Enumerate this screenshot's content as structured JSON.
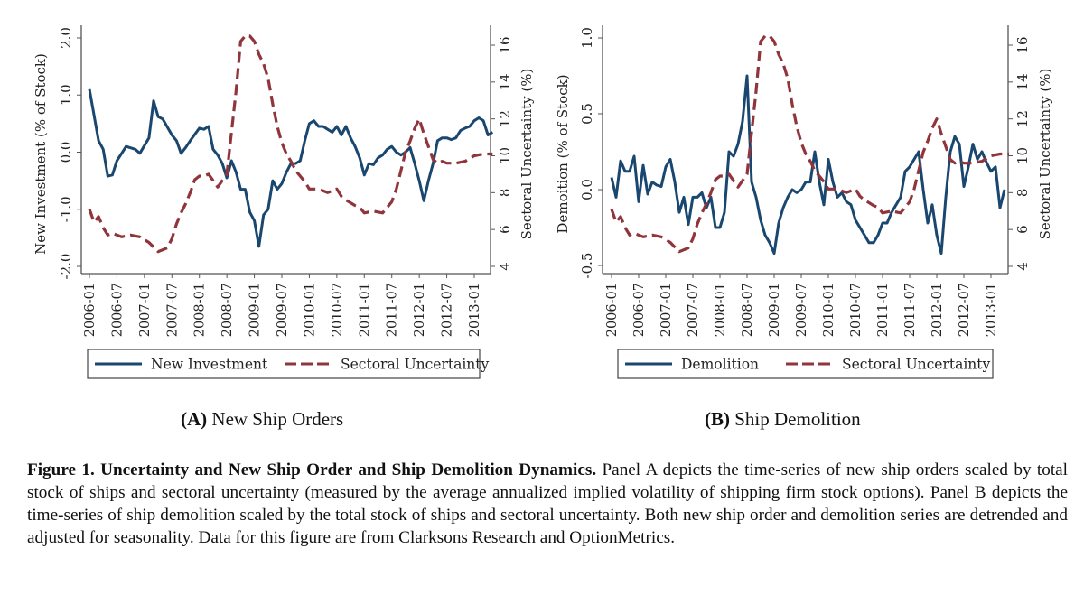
{
  "figure": {
    "panel_labels": [
      {
        "letter": "(A)",
        "text": "New Ship Orders"
      },
      {
        "letter": "(B)",
        "text": "Ship Demolition"
      }
    ],
    "caption": {
      "title": "Figure 1.  Uncertainty and New Ship Order and Ship Demolition Dynamics.",
      "body": "Panel A depicts the time-series of new ship orders scaled by total stock of ships and sectoral uncertainty (measured by the average annualized implied volatility of shipping firm stock options). Panel B depicts the time-series of ship demolition scaled by the total stock of ships and sectoral uncertainty.  Both new ship order and demolition series are detrended and adjusted for seasonality. Data for this figure are from Clarksons Research and OptionMetrics."
    }
  },
  "chart_data": [
    {
      "type": "line",
      "panel": "A",
      "title": "New Ship Orders",
      "xlabel": "",
      "ylabel": "New Investment (% of Stock)",
      "y2label": "Sectoral Uncertainty (%)",
      "x_ticks": [
        "2006-01",
        "2006-07",
        "2007-01",
        "2007-07",
        "2008-01",
        "2008-07",
        "2009-01",
        "2009-07",
        "2010-01",
        "2010-07",
        "2011-01",
        "2011-07",
        "2012-01",
        "2012-07",
        "2013-01"
      ],
      "y_ticks": [
        "-2.0",
        "-1.0",
        "0.0",
        "1.0",
        "2.0"
      ],
      "y2_ticks": [
        "4",
        "6",
        "8",
        "10",
        "12",
        "14",
        "16"
      ],
      "ylim": [
        -2.0,
        2.0
      ],
      "y2lim": [
        4,
        16.5
      ],
      "x_range_months": [
        0,
        88
      ],
      "grid": false,
      "legend_position": "bottom",
      "colors": {
        "primary": "#1a476f",
        "secondary": "#90353b"
      },
      "series": [
        {
          "name": "New Investment",
          "axis": "left",
          "style": "solid",
          "x_months": [
            0,
            2,
            3,
            4,
            5,
            6,
            8,
            10,
            11,
            13,
            14,
            15,
            16,
            18,
            19,
            20,
            21,
            22,
            24,
            25,
            26,
            27,
            28,
            29,
            30,
            31,
            32,
            33,
            34,
            35,
            36,
            37,
            38,
            39,
            40,
            41,
            42,
            43,
            44,
            45,
            46,
            47,
            48,
            49,
            50,
            51,
            52,
            53,
            54,
            55,
            56,
            57,
            58,
            59,
            60,
            61,
            62,
            63,
            64,
            65,
            66,
            67,
            68,
            69,
            70,
            71,
            72,
            73,
            74,
            75,
            76,
            77,
            78,
            79,
            80,
            81,
            82,
            83,
            84,
            85,
            86,
            87,
            88
          ],
          "values": [
            1.1,
            0.2,
            0.05,
            -0.42,
            -0.4,
            -0.15,
            0.1,
            0.05,
            -0.02,
            0.25,
            0.9,
            0.62,
            0.58,
            0.3,
            0.2,
            -0.02,
            0.08,
            0.2,
            0.42,
            0.4,
            0.45,
            0.05,
            -0.05,
            -0.2,
            -0.45,
            -0.15,
            -0.35,
            -0.65,
            -0.65,
            -1.05,
            -1.2,
            -1.65,
            -1.1,
            -1.0,
            -0.5,
            -0.65,
            -0.55,
            -0.35,
            -0.2,
            -0.2,
            -0.15,
            0.2,
            0.5,
            0.55,
            0.45,
            0.45,
            0.4,
            0.35,
            0.45,
            0.3,
            0.45,
            0.25,
            0.1,
            -0.1,
            -0.4,
            -0.2,
            -0.22,
            -0.1,
            -0.05,
            0.05,
            0.1,
            0.0,
            -0.05,
            0.0,
            0.08,
            -0.2,
            -0.5,
            -0.85,
            -0.5,
            -0.2,
            0.2,
            0.25,
            0.25,
            0.22,
            0.25,
            0.38,
            0.42,
            0.45,
            0.55,
            0.6,
            0.55,
            0.3,
            0.35
          ]
        },
        {
          "name": "Sectoral Uncertainty",
          "axis": "right",
          "style": "dashed",
          "x_months": [
            0,
            1,
            2,
            3,
            4,
            5,
            7,
            9,
            11,
            13,
            15,
            17,
            18,
            19,
            20,
            21,
            22,
            23,
            24,
            25,
            26,
            28,
            30,
            32,
            33,
            34,
            35,
            36,
            37,
            38,
            39,
            40,
            41,
            42,
            43,
            44,
            45,
            46,
            47,
            48,
            50,
            52,
            54,
            55,
            56,
            58,
            59,
            60,
            62,
            64,
            66,
            67,
            68,
            69,
            70,
            71,
            72,
            73,
            74,
            75,
            76,
            77,
            78,
            79,
            80,
            82,
            84,
            86,
            88
          ],
          "values": [
            7.1,
            6.4,
            6.7,
            6.1,
            5.7,
            5.8,
            5.6,
            5.7,
            5.6,
            5.3,
            4.8,
            5.0,
            5.5,
            6.3,
            6.9,
            7.4,
            8.0,
            8.7,
            8.9,
            8.9,
            9.0,
            8.3,
            9.0,
            13.5,
            16.2,
            16.5,
            16.5,
            16.2,
            15.5,
            15.0,
            14.2,
            12.8,
            11.6,
            10.7,
            10.1,
            9.7,
            9.2,
            8.9,
            8.6,
            8.2,
            8.2,
            8.0,
            8.2,
            7.8,
            7.6,
            7.3,
            7.2,
            6.9,
            7.0,
            6.9,
            7.5,
            8.2,
            9.2,
            10.2,
            10.8,
            11.5,
            12.0,
            11.2,
            10.5,
            9.8,
            9.6,
            9.7,
            9.6,
            9.6,
            9.6,
            9.7,
            10.0,
            10.1,
            10.1
          ]
        }
      ]
    },
    {
      "type": "line",
      "panel": "B",
      "title": "Ship Demolition",
      "xlabel": "",
      "ylabel": "Demoition (% of Stock)",
      "y2label": "Sectoral Uncertainty (%)",
      "x_ticks": [
        "2006-01",
        "2006-07",
        "2007-01",
        "2007-07",
        "2008-01",
        "2008-07",
        "2009-01",
        "2009-07",
        "2010-01",
        "2010-07",
        "2011-01",
        "2011-07",
        "2012-01",
        "2012-07",
        "2013-01"
      ],
      "y_ticks": [
        "-0.5",
        "0.0",
        "0.5",
        "1.0"
      ],
      "y2_ticks": [
        "4",
        "6",
        "8",
        "10",
        "12",
        "14",
        "16"
      ],
      "ylim": [
        -0.52,
        1.0
      ],
      "y2lim": [
        4,
        16.5
      ],
      "x_range_months": [
        0,
        88
      ],
      "grid": false,
      "legend_position": "bottom",
      "colors": {
        "primary": "#1a476f",
        "secondary": "#90353b"
      },
      "series": [
        {
          "name": "Demolition",
          "axis": "left",
          "style": "solid",
          "x_months": [
            0,
            1,
            2,
            3,
            4,
            5,
            6,
            7,
            8,
            9,
            10,
            11,
            12,
            13,
            14,
            15,
            16,
            17,
            18,
            19,
            20,
            21,
            22,
            23,
            24,
            25,
            26,
            27,
            28,
            29,
            30,
            31,
            32,
            33,
            34,
            35,
            36,
            37,
            38,
            39,
            40,
            41,
            42,
            43,
            44,
            45,
            46,
            47,
            48,
            49,
            50,
            51,
            52,
            53,
            54,
            55,
            56,
            57,
            58,
            59,
            60,
            61,
            62,
            63,
            64,
            65,
            66,
            67,
            68,
            69,
            70,
            71,
            72,
            73,
            74,
            75,
            76,
            77,
            78,
            79,
            80,
            81,
            82,
            83,
            84,
            85,
            86,
            87
          ],
          "values": [
            0.08,
            -0.05,
            0.19,
            0.12,
            0.12,
            0.22,
            -0.08,
            0.16,
            -0.03,
            0.05,
            0.03,
            0.02,
            0.15,
            0.2,
            0.05,
            -0.15,
            -0.05,
            -0.23,
            -0.05,
            -0.05,
            -0.02,
            -0.12,
            -0.05,
            -0.25,
            -0.25,
            -0.15,
            0.25,
            0.22,
            0.3,
            0.45,
            0.75,
            0.05,
            -0.05,
            -0.2,
            -0.3,
            -0.35,
            -0.42,
            -0.22,
            -0.12,
            -0.05,
            0.0,
            -0.02,
            0.0,
            0.05,
            0.05,
            0.25,
            0.05,
            -0.1,
            0.2,
            0.05,
            -0.05,
            -0.02,
            -0.08,
            -0.1,
            -0.2,
            -0.25,
            -0.3,
            -0.35,
            -0.35,
            -0.3,
            -0.22,
            -0.22,
            -0.15,
            -0.1,
            -0.05,
            0.12,
            0.15,
            0.2,
            0.25,
            0.0,
            -0.22,
            -0.1,
            -0.3,
            -0.42,
            -0.05,
            0.25,
            0.35,
            0.3,
            0.02,
            0.15,
            0.3,
            0.2,
            0.25,
            0.18,
            0.12,
            0.15,
            -0.12,
            0.0,
            -0.05
          ],
          "values_note": "estimated from trace"
        },
        {
          "name": "Sectoral Uncertainty",
          "axis": "right",
          "style": "dashed",
          "x_months": [
            0,
            1,
            2,
            3,
            4,
            5,
            7,
            9,
            11,
            13,
            15,
            17,
            18,
            19,
            20,
            21,
            22,
            23,
            24,
            25,
            26,
            28,
            30,
            32,
            33,
            34,
            35,
            36,
            37,
            38,
            39,
            40,
            41,
            42,
            43,
            44,
            45,
            46,
            47,
            48,
            50,
            52,
            54,
            55,
            56,
            58,
            59,
            60,
            62,
            64,
            66,
            67,
            68,
            69,
            70,
            71,
            72,
            73,
            74,
            75,
            76,
            77,
            78,
            79,
            80,
            82,
            84,
            86,
            88
          ],
          "values": [
            7.1,
            6.4,
            6.7,
            6.1,
            5.7,
            5.8,
            5.6,
            5.7,
            5.6,
            5.3,
            4.8,
            5.0,
            5.5,
            6.3,
            6.9,
            7.4,
            8.0,
            8.7,
            8.9,
            8.9,
            9.0,
            8.3,
            9.0,
            13.5,
            16.2,
            16.5,
            16.5,
            16.2,
            15.5,
            15.0,
            14.2,
            12.8,
            11.6,
            10.7,
            10.1,
            9.7,
            9.2,
            8.9,
            8.6,
            8.2,
            8.2,
            8.0,
            8.2,
            7.8,
            7.6,
            7.3,
            7.2,
            6.9,
            7.0,
            6.9,
            7.5,
            8.2,
            9.2,
            10.2,
            10.8,
            11.5,
            12.0,
            11.2,
            10.5,
            9.8,
            9.6,
            9.7,
            9.6,
            9.6,
            9.6,
            9.7,
            10.0,
            10.1,
            10.1
          ]
        }
      ]
    }
  ]
}
